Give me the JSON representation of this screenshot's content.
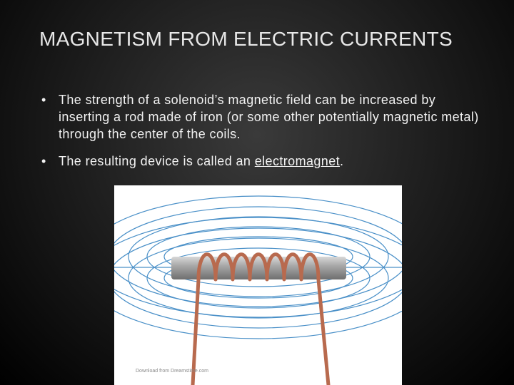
{
  "slide": {
    "title": "MAGNETISM FROM ELECTRIC CURRENTS",
    "bullets": [
      {
        "parts": [
          "The strength of a solenoid’s magnetic field can be increased by inserting a rod made of iron (or some other potentially magnetic metal) through the center of the coils."
        ]
      },
      {
        "parts": [
          "The resulting device is called an ",
          "electromagnet",
          "."
        ]
      }
    ],
    "image": {
      "watermark": "Download from Dreamstime.com"
    }
  }
}
